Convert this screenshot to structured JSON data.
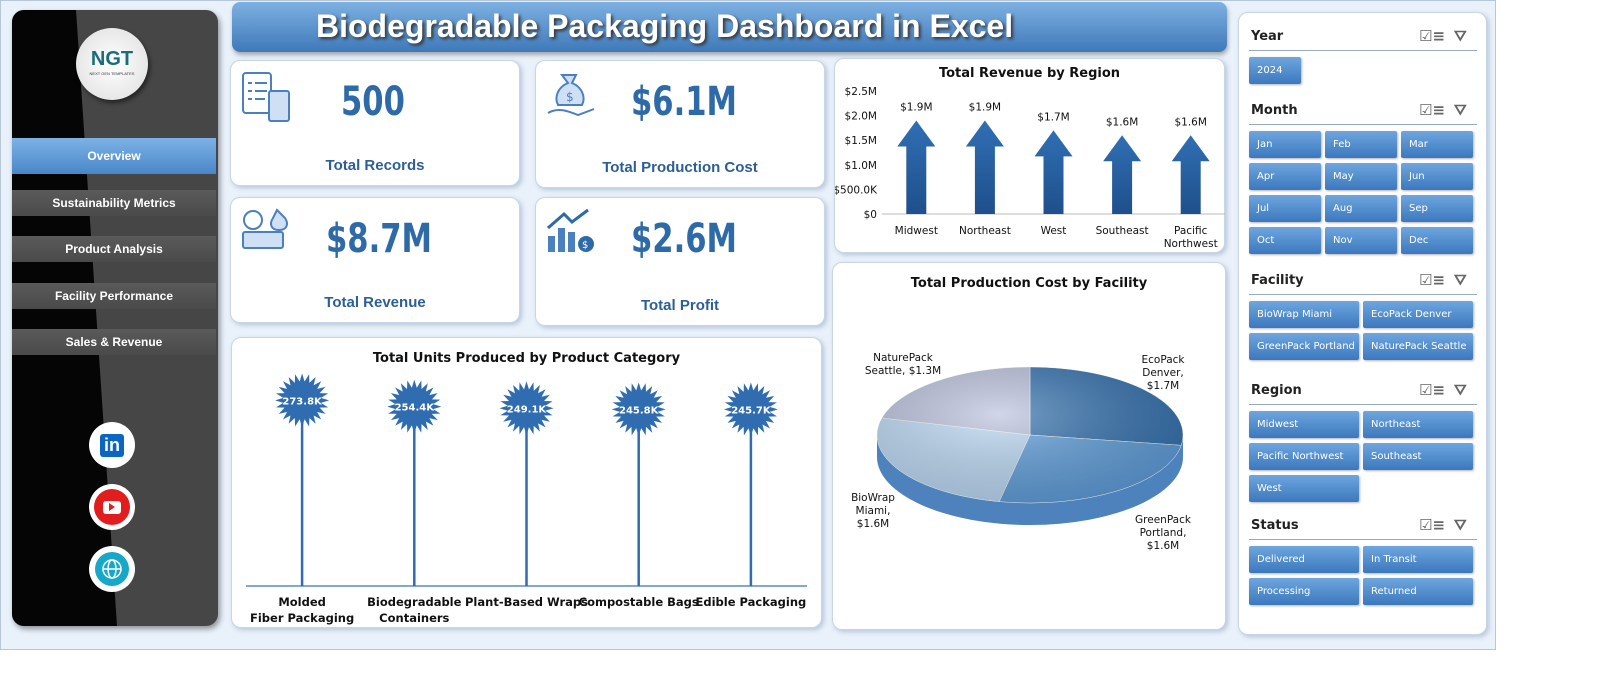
{
  "title": "Biodegradable Packaging Dashboard in Excel",
  "logo": {
    "text": "NGT",
    "subtitle": "NEXT GEN TEMPLATES"
  },
  "nav": [
    {
      "label": "Overview",
      "active": true
    },
    {
      "label": "Sustainability Metrics"
    },
    {
      "label": "Product Analysis"
    },
    {
      "label": "Facility Performance"
    },
    {
      "label": "Sales & Revenue"
    }
  ],
  "social": [
    {
      "icon": "linkedin-icon",
      "label": "in"
    },
    {
      "icon": "youtube-icon"
    },
    {
      "icon": "globe-icon"
    }
  ],
  "kpis": [
    {
      "value": "500",
      "label": "Total Records",
      "icon": "clipboard-calculator-icon"
    },
    {
      "value": "$6.1M",
      "label": "Total Production Cost",
      "icon": "money-bag-hand-icon"
    },
    {
      "value": "$8.7M",
      "label": "Total Revenue",
      "icon": "money-stack-icon"
    },
    {
      "value": "$2.6M",
      "label": "Total Profit",
      "icon": "growth-chart-icon"
    }
  ],
  "colors": {
    "accent": "#2e6aa8",
    "bar": "#2f6db0",
    "button": "#4a86c8"
  },
  "chart_data": [
    {
      "type": "bar",
      "title": "Total Revenue  by Region",
      "categories": [
        "Midwest",
        "Northeast",
        "West",
        "Southeast",
        "Pacific Northwest"
      ],
      "values": [
        1.9,
        1.9,
        1.7,
        1.6,
        1.6
      ],
      "data_labels": [
        "$1.9M",
        "$1.9M",
        "$1.7M",
        "$1.6M",
        "$1.6M"
      ],
      "yticks": [
        "$0",
        "$500.0K",
        "$1.0M",
        "$1.5M",
        "$2.0M",
        "$2.5M"
      ],
      "ylim": [
        0,
        2.5
      ],
      "unit": "M"
    },
    {
      "type": "bar",
      "title": "Total Units Produced by Product Category",
      "categories": [
        "Molded Fiber Packaging",
        "Biodegradable Containers",
        "Plant-Based Wraps",
        "Compostable Bags",
        "Edible Packaging"
      ],
      "values": [
        273.8,
        254.4,
        249.1,
        245.8,
        245.7
      ],
      "data_labels": [
        "273.8K",
        "254.4K",
        "249.1K",
        "245.8K",
        "245.7K"
      ],
      "unit": "K"
    },
    {
      "type": "pie",
      "title": "Total Production Cost by Facility",
      "categories": [
        "EcoPack Denver",
        "GreenPack Portland",
        "BioWrap Miami",
        "NaturePack Seattle"
      ],
      "values": [
        1.7,
        1.6,
        1.6,
        1.3
      ],
      "data_labels": [
        "EcoPack Denver, $1.7M",
        "GreenPack Portland, $1.6M",
        "BioWrap Miami, $1.6M",
        "NaturePack Seattle, $1.3M"
      ],
      "colors": [
        "#2f6ead",
        "#5b9bd9",
        "#b9d7f3",
        "#b8bfdc"
      ]
    }
  ],
  "slicers": [
    {
      "title": "Year",
      "items": [
        "2024"
      ],
      "cols": 4
    },
    {
      "title": "Month",
      "items": [
        "Jan",
        "Feb",
        "Mar",
        "Apr",
        "May",
        "Jun",
        "Jul",
        "Aug",
        "Sep",
        "Oct",
        "Nov",
        "Dec"
      ],
      "cols": 3
    },
    {
      "title": "Facility",
      "items": [
        "BioWrap Miami",
        "EcoPack Denver",
        "GreenPack Portland",
        "NaturePack Seattle"
      ],
      "cols": 2
    },
    {
      "title": "Region",
      "items": [
        "Midwest",
        "Northeast",
        "Pacific Northwest",
        "Southeast",
        "West"
      ],
      "cols": 2
    },
    {
      "title": "Status",
      "items": [
        "Delivered",
        "In Transit",
        "Processing",
        "Returned"
      ],
      "cols": 2
    }
  ]
}
